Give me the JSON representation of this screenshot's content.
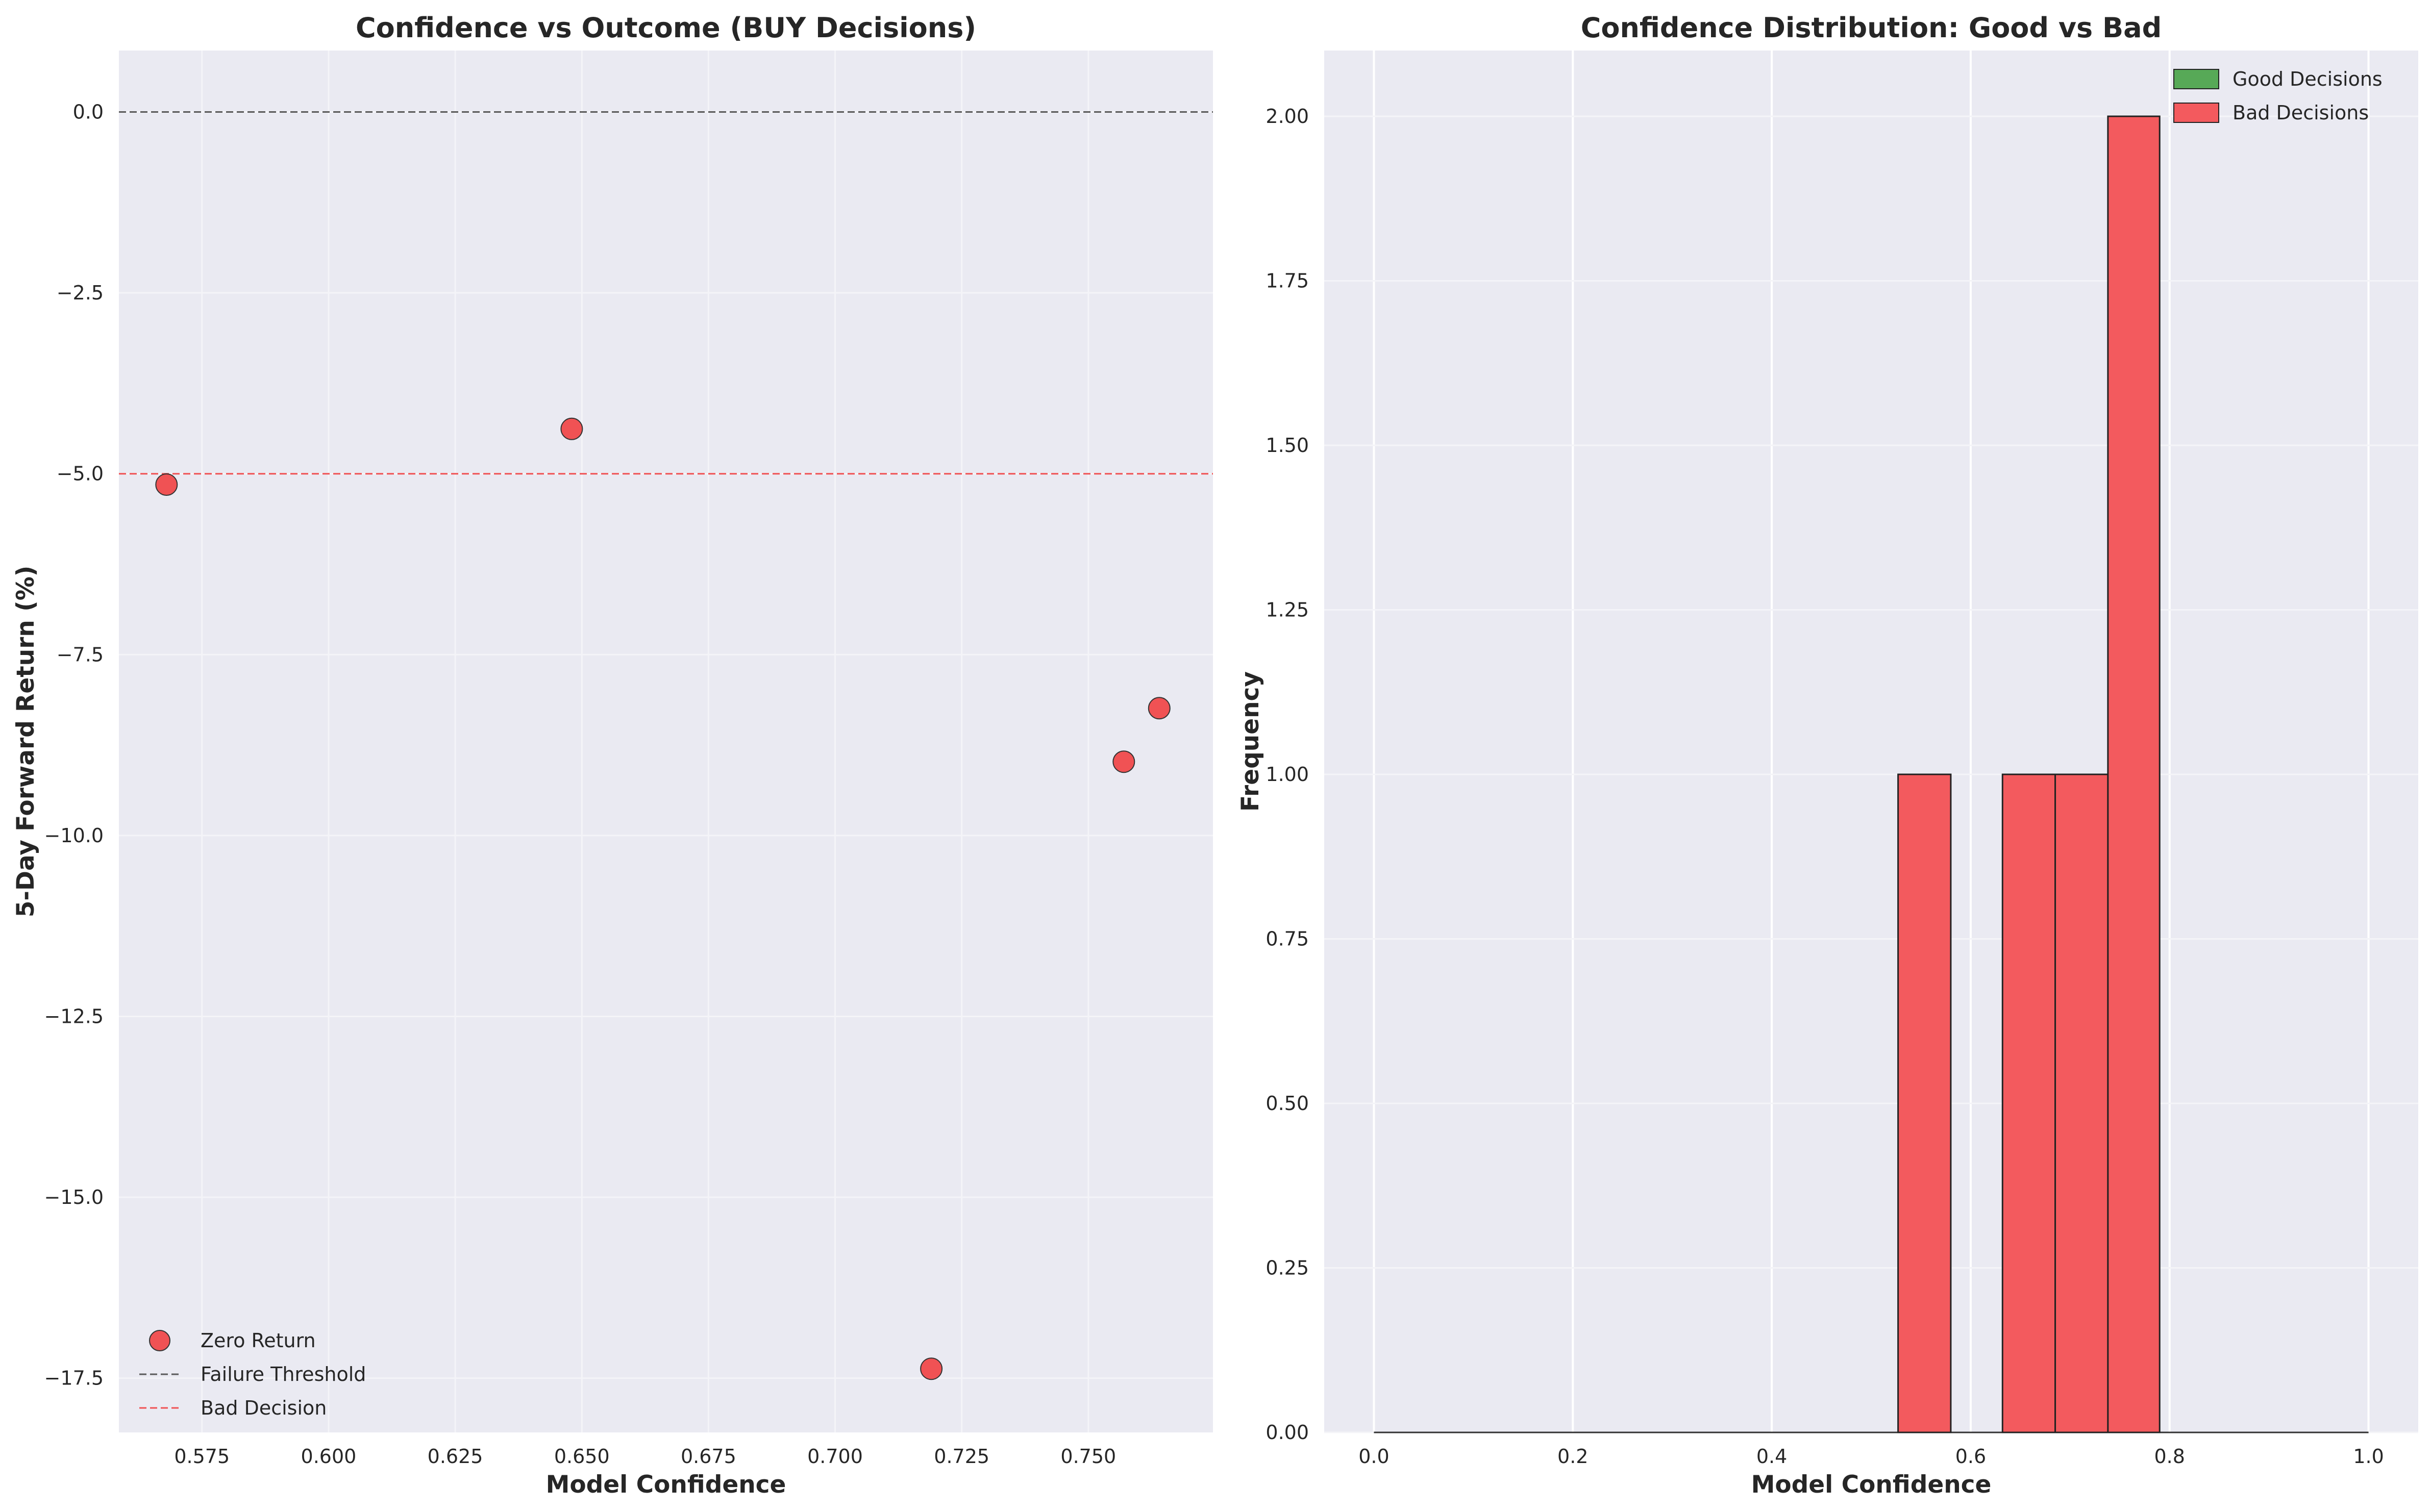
{
  "chart_data": [
    {
      "type": "scatter",
      "title": "Confidence vs Outcome (BUY Decisions)",
      "xlabel": "Model Confidence",
      "ylabel": "5-Day Forward Return (%)",
      "xlim": [
        0.5586,
        0.7746
      ],
      "ylim": [
        -18.25,
        0.85
      ],
      "xticks": [
        0.575,
        0.6,
        0.625,
        0.65,
        0.675,
        0.7,
        0.725,
        0.75
      ],
      "xtick_labels": [
        "0.575",
        "0.600",
        "0.625",
        "0.650",
        "0.675",
        "0.700",
        "0.725",
        "0.750"
      ],
      "yticks": [
        0.0,
        -2.5,
        -5.0,
        -7.5,
        -10.0,
        -12.5,
        -15.0,
        -17.5
      ],
      "ytick_labels": [
        "0.0",
        "−2.5",
        "−5.0",
        "−7.5",
        "−10.0",
        "−12.5",
        "−15.0",
        "−17.5"
      ],
      "grid": true,
      "legend_position": "lower-left",
      "series": [
        {
          "name": "Zero Return",
          "color": "#f05254",
          "points": [
            {
              "x": 0.568,
              "y": -5.15
            },
            {
              "x": 0.648,
              "y": -4.38
            },
            {
              "x": 0.719,
              "y": -17.37
            },
            {
              "x": 0.757,
              "y": -8.98
            },
            {
              "x": 0.764,
              "y": -8.24
            }
          ]
        }
      ],
      "reference_lines": [
        {
          "name": "Failure Threshold",
          "y": 0.0,
          "color": "#5a5a5a",
          "style": "dashed"
        },
        {
          "name": "Bad Decision",
          "y": -5.0,
          "color": "#f05254",
          "style": "dashed"
        }
      ]
    },
    {
      "type": "bar",
      "title": "Confidence Distribution: Good vs Bad",
      "xlabel": "Model Confidence",
      "ylabel": "Frequency",
      "xlim": [
        -0.05,
        1.05
      ],
      "ylim": [
        0,
        2.1
      ],
      "xticks": [
        0.0,
        0.2,
        0.4,
        0.6,
        0.8,
        1.0
      ],
      "xtick_labels": [
        "0.0",
        "0.2",
        "0.4",
        "0.6",
        "0.8",
        "1.0"
      ],
      "yticks": [
        0.0,
        0.25,
        0.5,
        0.75,
        1.0,
        1.25,
        1.5,
        1.75,
        2.0
      ],
      "ytick_labels": [
        "0.00",
        "0.25",
        "0.50",
        "0.75",
        "1.00",
        "1.25",
        "1.50",
        "1.75",
        "2.00"
      ],
      "grid": true,
      "legend_position": "top-right",
      "series": [
        {
          "name": "Good Decisions",
          "color": "#57a957",
          "bins": [
            {
              "x0": 0.0,
              "x1": 1.0,
              "count": 0
            }
          ]
        },
        {
          "name": "Bad Decisions",
          "color": "#f35a5e",
          "bins": [
            {
              "x0": 0.527,
              "x1": 0.58,
              "count": 1
            },
            {
              "x0": 0.632,
              "x1": 0.685,
              "count": 1
            },
            {
              "x0": 0.685,
              "x1": 0.738,
              "count": 1
            },
            {
              "x0": 0.738,
              "x1": 0.79,
              "count": 2
            }
          ]
        }
      ]
    }
  ]
}
